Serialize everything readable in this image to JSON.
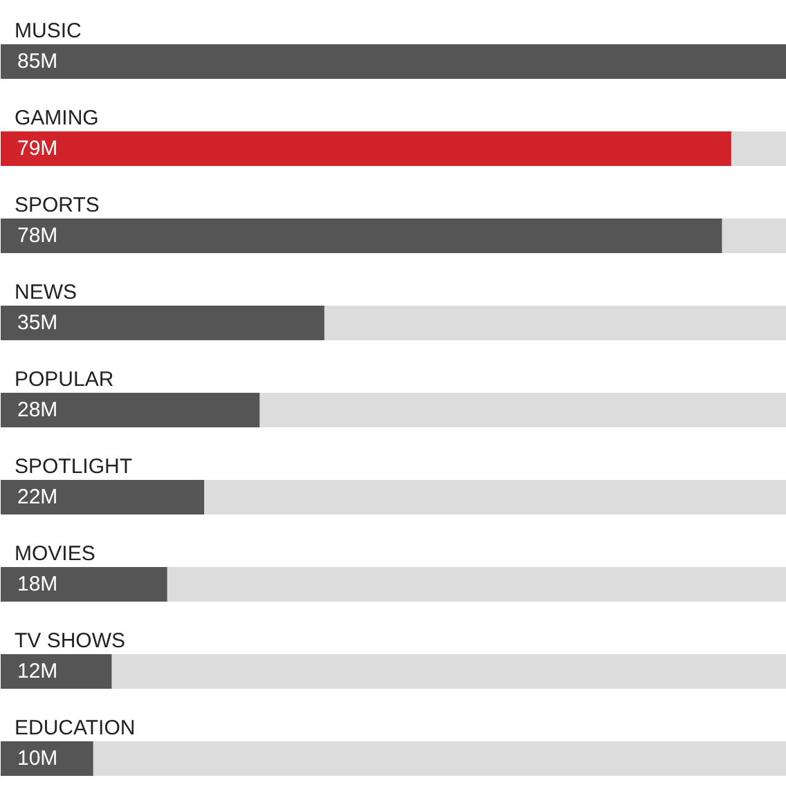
{
  "chart_data": {
    "type": "bar",
    "orientation": "horizontal",
    "categories": [
      "MUSIC",
      "GAMING",
      "SPORTS",
      "NEWS",
      "POPULAR",
      "SPOTLIGHT",
      "MOVIES",
      "TV SHOWS",
      "EDUCATION"
    ],
    "values": [
      85,
      79,
      78,
      35,
      28,
      22,
      18,
      12,
      10
    ],
    "colors": [
      "#555555",
      "#d2232a",
      "#555555",
      "#555555",
      "#555555",
      "#555555",
      "#555555",
      "#555555",
      "#555555"
    ],
    "value_labels": [
      "85M",
      "79M",
      "78M",
      "35M",
      "28M",
      "22M",
      "18M",
      "12M",
      "10M"
    ],
    "xlim": [
      0,
      85
    ],
    "tick_labels": false,
    "grid": false
  }
}
